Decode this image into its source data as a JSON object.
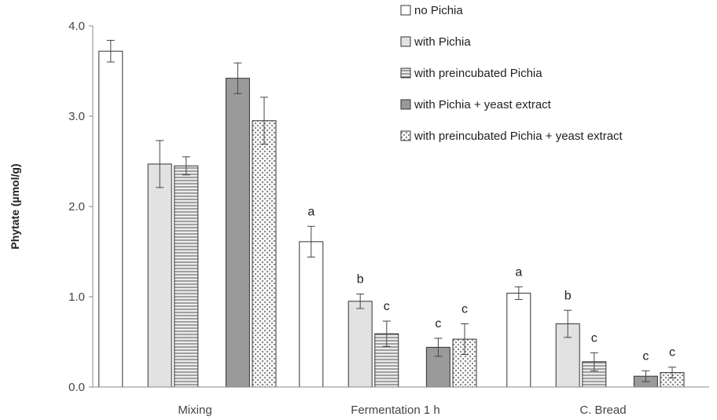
{
  "chart_data": {
    "type": "bar",
    "ylabel": "Phytate (µmol/g)",
    "ylim": [
      0,
      4
    ],
    "yticks": [
      "0.0",
      "1.0",
      "2.0",
      "3.0",
      "4.0"
    ],
    "categories": [
      "Mixing",
      "Fermentation 1 h",
      "C. Bread"
    ],
    "legend_position": "top-right",
    "series": [
      {
        "name": "no Pichia",
        "color": "#ffffff",
        "pattern": "none",
        "values": [
          3.72,
          1.61,
          1.04
        ],
        "errors": [
          0.12,
          0.17,
          0.07
        ],
        "labels": [
          "",
          "a",
          "a"
        ]
      },
      {
        "name": "with Pichia",
        "color": "#e2e2e2",
        "pattern": "none",
        "values": [
          2.47,
          0.95,
          0.7
        ],
        "errors": [
          0.26,
          0.08,
          0.15
        ],
        "labels": [
          "",
          "b",
          "b"
        ]
      },
      {
        "name": "with preincubated Pichia",
        "color": "#e8e8e8",
        "pattern": "horizontal-lines",
        "values": [
          2.45,
          0.59,
          0.28
        ],
        "errors": [
          0.1,
          0.14,
          0.1
        ],
        "labels": [
          "",
          "c",
          "c"
        ]
      },
      {
        "name": "with Pichia + yeast extract",
        "color": "#9a9a9a",
        "pattern": "none",
        "values": [
          3.42,
          0.44,
          0.12
        ],
        "errors": [
          0.17,
          0.1,
          0.06
        ],
        "labels": [
          "",
          "c",
          "c"
        ]
      },
      {
        "name": "with preincubated Pichia + yeast extract",
        "color": "#f4f4f4",
        "pattern": "dots",
        "values": [
          2.95,
          0.53,
          0.16
        ],
        "errors": [
          0.26,
          0.17,
          0.06
        ],
        "labels": [
          "",
          "c",
          "c"
        ]
      }
    ]
  }
}
